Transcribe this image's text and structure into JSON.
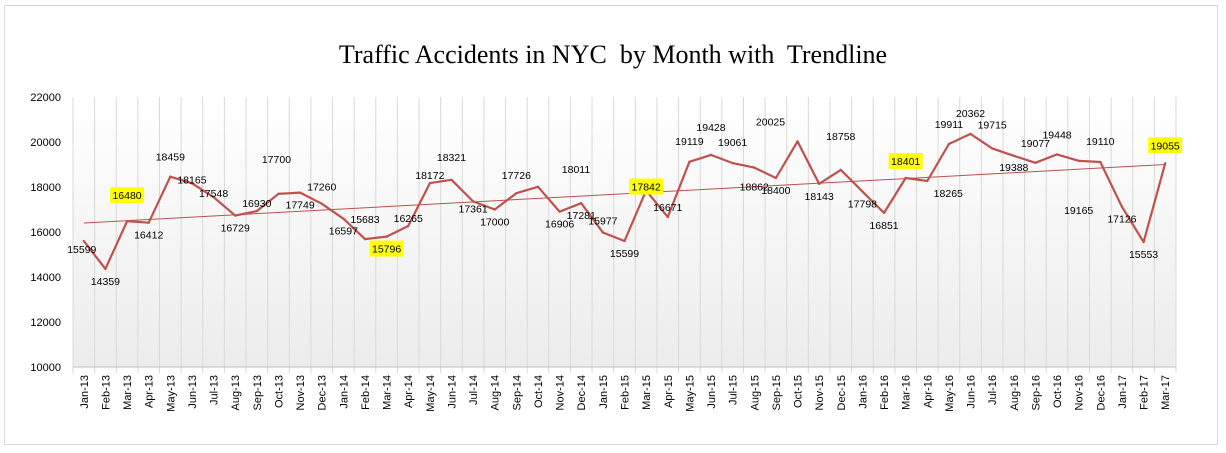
{
  "chart_data": {
    "type": "line",
    "title": "Traffic Accidents in NYC  by Month with  Trendline",
    "xlabel": "",
    "ylabel": "",
    "ylim": [
      10000,
      22000
    ],
    "yticks": [
      "10000",
      "12000",
      "14000",
      "16000",
      "18000",
      "20000",
      "22000"
    ],
    "legend": "none",
    "grid": "vertical",
    "categories": [
      "Jan-13",
      "Feb-13",
      "Mar-13",
      "Apr-13",
      "May-13",
      "Jun-13",
      "Jul-13",
      "Aug-13",
      "Sep-13",
      "Oct-13",
      "Nov-13",
      "Dec-13",
      "Jan-14",
      "Feb-14",
      "Mar-14",
      "Apr-14",
      "May-14",
      "Jun-14",
      "Jul-14",
      "Aug-14",
      "Sep-14",
      "Oct-14",
      "Nov-14",
      "Dec-14",
      "Jan-15",
      "Feb-15",
      "Mar-15",
      "Apr-15",
      "May-15",
      "Jun-15",
      "Jul-15",
      "Aug-15",
      "Sep-15",
      "Oct-15",
      "Nov-15",
      "Dec-15",
      "Jan-16",
      "Feb-16",
      "Mar-16",
      "Apr-16",
      "May-16",
      "Jun-16",
      "Jul-16",
      "Aug-16",
      "Sep-16",
      "Oct-16",
      "Nov-16",
      "Dec-16",
      "Jan-17",
      "Feb-17",
      "Mar-17"
    ],
    "series": [
      {
        "values": [
          15599,
          14359,
          16480,
          16412,
          18459,
          18165,
          17548,
          16729,
          16930,
          17700,
          17749,
          17260,
          16597,
          15683,
          15796,
          16265,
          18172,
          18321,
          17361,
          17000,
          17726,
          18011,
          16906,
          17281,
          15977,
          15599,
          17842,
          16671,
          19119,
          19428,
          19061,
          18862,
          18400,
          20025,
          18143,
          18758,
          17798,
          16851,
          18401,
          18265,
          19911,
          20362,
          19715,
          19388,
          19077,
          19448,
          19165,
          19110,
          17126,
          15553,
          19055
        ]
      }
    ],
    "trendline": {
      "start": 16400,
      "end": 19000
    },
    "highlighted_labels": [
      "16480",
      "15796",
      "17842",
      "18401",
      "19055"
    ],
    "colors": {
      "line": "#c0504d",
      "trend": "#c0504d",
      "highlight": "#ffff00",
      "grid": "#d9d9d9"
    }
  }
}
